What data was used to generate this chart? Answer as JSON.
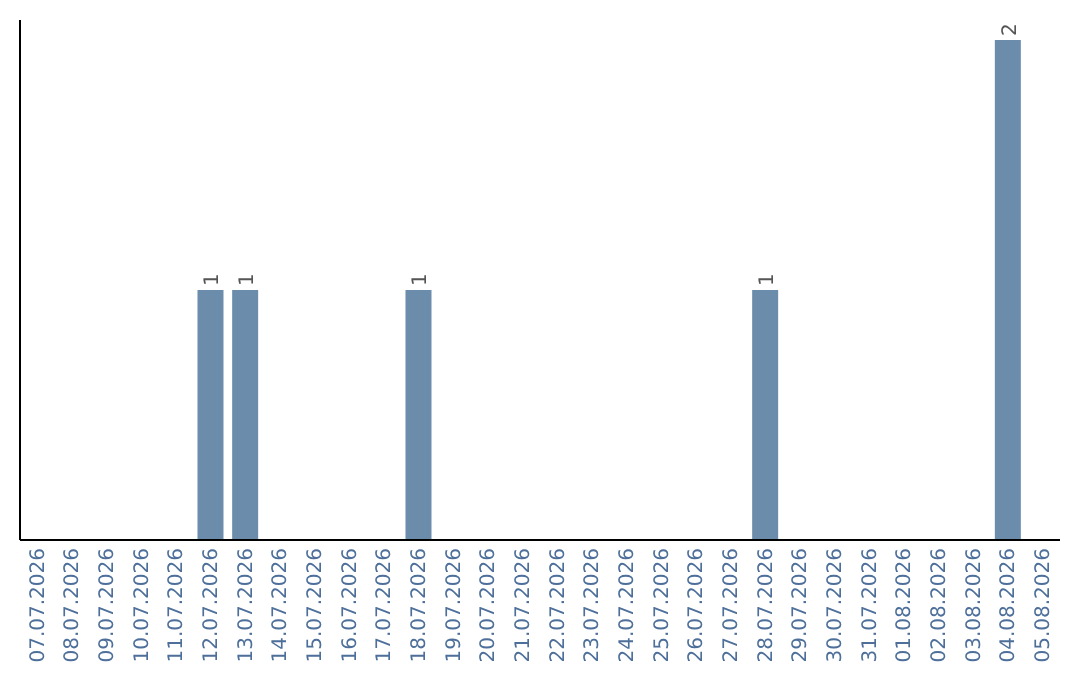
{
  "chart_data": {
    "type": "bar",
    "categories": [
      "07.07.2026",
      "08.07.2026",
      "09.07.2026",
      "10.07.2026",
      "11.07.2026",
      "12.07.2026",
      "13.07.2026",
      "14.07.2026",
      "15.07.2026",
      "16.07.2026",
      "17.07.2026",
      "18.07.2026",
      "19.07.2026",
      "20.07.2026",
      "21.07.2026",
      "22.07.2026",
      "23.07.2026",
      "24.07.2026",
      "25.07.2026",
      "26.07.2026",
      "27.07.2026",
      "28.07.2026",
      "29.07.2026",
      "30.07.2026",
      "31.07.2026",
      "01.08.2026",
      "02.08.2026",
      "03.08.2026",
      "04.08.2026",
      "05.08.2026"
    ],
    "values": [
      0,
      0,
      0,
      0,
      0,
      1,
      1,
      0,
      0,
      0,
      0,
      1,
      0,
      0,
      0,
      0,
      0,
      0,
      0,
      0,
      0,
      1,
      0,
      0,
      0,
      0,
      0,
      0,
      2,
      0
    ],
    "value_labels": [
      null,
      null,
      null,
      null,
      null,
      "1",
      "1",
      null,
      null,
      null,
      null,
      "1",
      null,
      null,
      null,
      null,
      null,
      null,
      null,
      null,
      null,
      "1",
      null,
      null,
      null,
      null,
      null,
      null,
      "2",
      null
    ],
    "color": "#6b8dab",
    "grid": false,
    "legend": false
  }
}
